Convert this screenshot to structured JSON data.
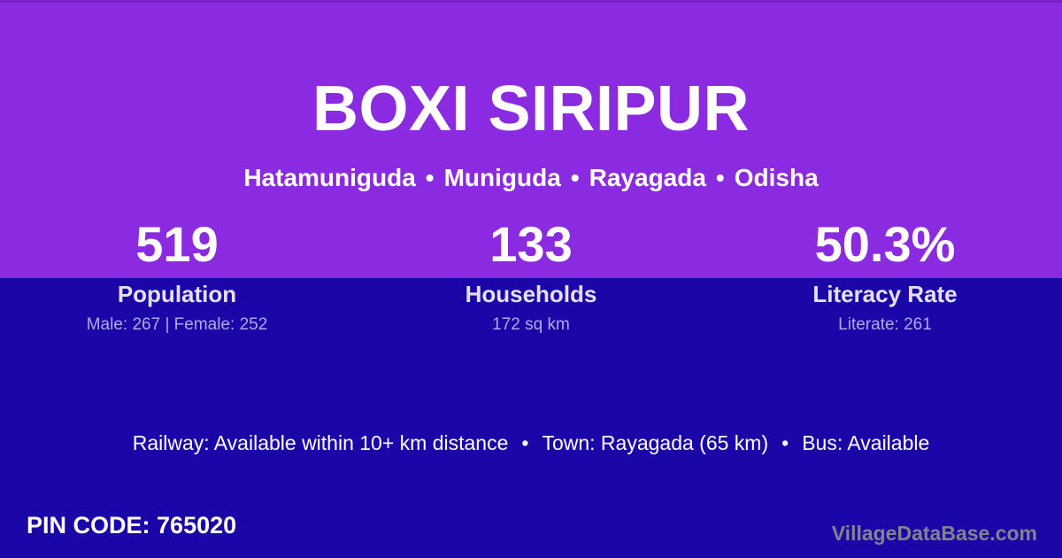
{
  "theme": {
    "top_background": "#8A2BE2",
    "bottom_background": "#1B06A8",
    "title_color": "#FFFFFF",
    "label_color": "#E4E0F7",
    "sublabel_color": "#B2A9E4",
    "watermark_color": "#83838D"
  },
  "header": {
    "title": "BOXI SIRIPUR",
    "location": {
      "items": [
        "Hatamuniguda",
        "Muniguda",
        "Rayagada",
        "Odisha"
      ],
      "separator": "•"
    }
  },
  "stats": [
    {
      "value": "519",
      "label": "Population",
      "sub": "Male: 267 | Female: 252"
    },
    {
      "value": "133",
      "label": "Households",
      "sub": "172 sq km"
    },
    {
      "value": "50.3%",
      "label": "Literacy Rate",
      "sub": "Literate: 261"
    }
  ],
  "transit": {
    "items": [
      "Railway: Available within 10+ km distance",
      "Town: Rayagada (65 km)",
      "Bus: Available"
    ],
    "separator": "•"
  },
  "pincode": {
    "label": "PIN CODE:",
    "value": "765020"
  },
  "watermark": "VillageDataBase.com"
}
